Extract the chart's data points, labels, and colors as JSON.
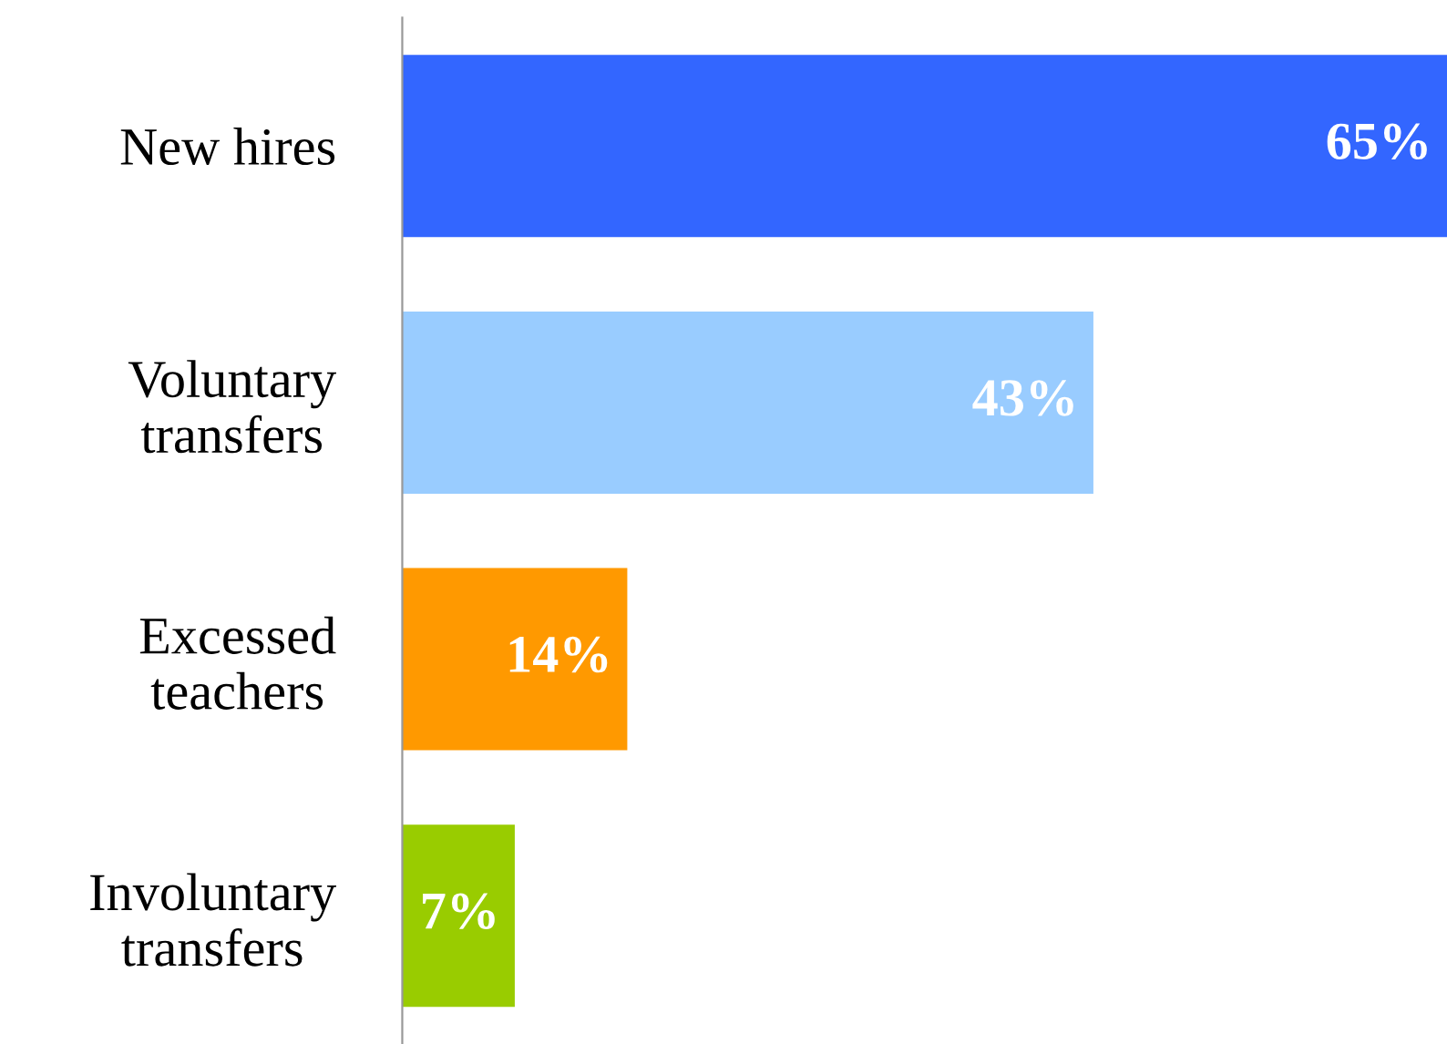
{
  "chart_data": {
    "type": "bar",
    "orientation": "horizontal",
    "categories": [
      "New hires",
      "Voluntary\ntransfers",
      "Excessed\nteachers",
      "Involuntary\ntransfers"
    ],
    "values": [
      65,
      43,
      14,
      7
    ],
    "colors": [
      "#3366ff",
      "#99ccff",
      "#ff9900",
      "#99cc00"
    ],
    "value_labels": [
      "65%",
      "43%",
      "14%",
      "7%"
    ],
    "xlim": [
      0,
      65
    ],
    "tick_labels": "y",
    "grid": false,
    "legend": false
  }
}
